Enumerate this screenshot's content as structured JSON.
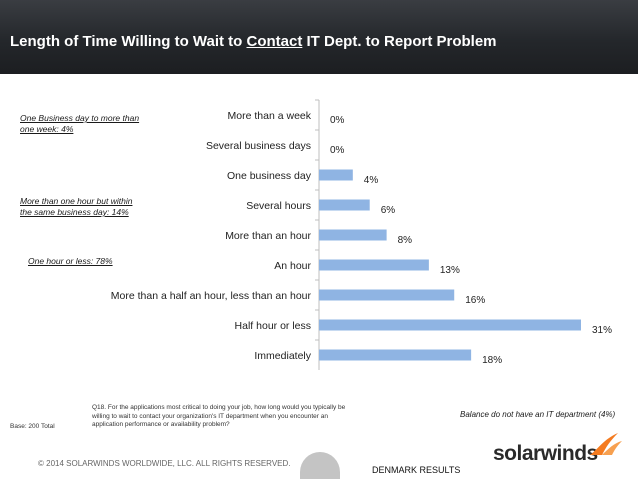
{
  "header": {
    "title_before": "Length of Time Willing to Wait to ",
    "title_underlined": "Contact",
    "title_after": " IT Dept. to Report Problem"
  },
  "annotations": {
    "group1": [
      "One Business day to more than",
      "one week: 4%"
    ],
    "group2": [
      "More than one hour but within",
      "the same business day: 14%"
    ],
    "group3": "One hour or less: 78%"
  },
  "chart_data": {
    "type": "bar",
    "orientation": "horizontal",
    "categories": [
      "More than a week",
      "Several business days",
      "One business day",
      "Several hours",
      "More than an hour",
      "An hour",
      "More than a half an hour, less than an hour",
      "Half hour or less",
      "Immediately"
    ],
    "values": [
      0,
      0,
      4,
      6,
      8,
      13,
      16,
      31,
      18
    ],
    "value_labels": [
      "0%",
      "0%",
      "4%",
      "6%",
      "8%",
      "13%",
      "16%",
      "31%",
      "18%"
    ],
    "bar_color": "#8fb4e3",
    "xlim": [
      0,
      31
    ]
  },
  "question_text": [
    "Q18. For the applications most critical to doing your job, how long would you typically be",
    "willing to wait to contact your organization's IT department when you encounter an",
    "application performance or availability problem?"
  ],
  "base": "Base:  200  Total",
  "balance_note": "Balance do not have an IT department (4%)",
  "copyright": "© 2014 SOLARWINDS WORLDWIDE, LLC.  ALL RIGHTS RESERVED.",
  "results_label": "DENMARK RESULTS",
  "logo": {
    "text": "solarwinds",
    "icon": "solarwinds-flame-icon",
    "accent": "#f47b20"
  }
}
